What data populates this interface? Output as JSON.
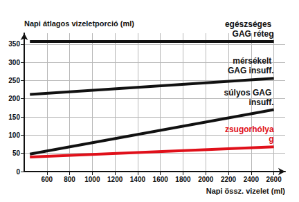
{
  "chart_data": {
    "type": "line",
    "x_label": "Napi össz. vizelet (ml)",
    "y_label": "Napi átlagos vizeletporció (ml)",
    "xlim": [
      400,
      2700
    ],
    "xticks": [
      600,
      800,
      1000,
      1200,
      1400,
      1600,
      1800,
      2000,
      2200,
      2400,
      2600
    ],
    "ylim": [
      0,
      380
    ],
    "yticks": [
      0,
      50,
      100,
      150,
      200,
      250,
      300,
      350
    ],
    "grid": true,
    "x": [
      450,
      2600
    ],
    "series": [
      {
        "name": "egészséges GAG réteg",
        "color": "#111111",
        "values": [
          357,
          357
        ]
      },
      {
        "name": "mérsékelt GAG insuff.",
        "color": "#111111",
        "values": [
          212,
          256
        ]
      },
      {
        "name": "súlyos GAG insuff.",
        "color": "#111111",
        "values": [
          48,
          170
        ]
      },
      {
        "name": "zsugorhólyag",
        "color": "#e0101a",
        "values": [
          40,
          68
        ]
      }
    ]
  }
}
